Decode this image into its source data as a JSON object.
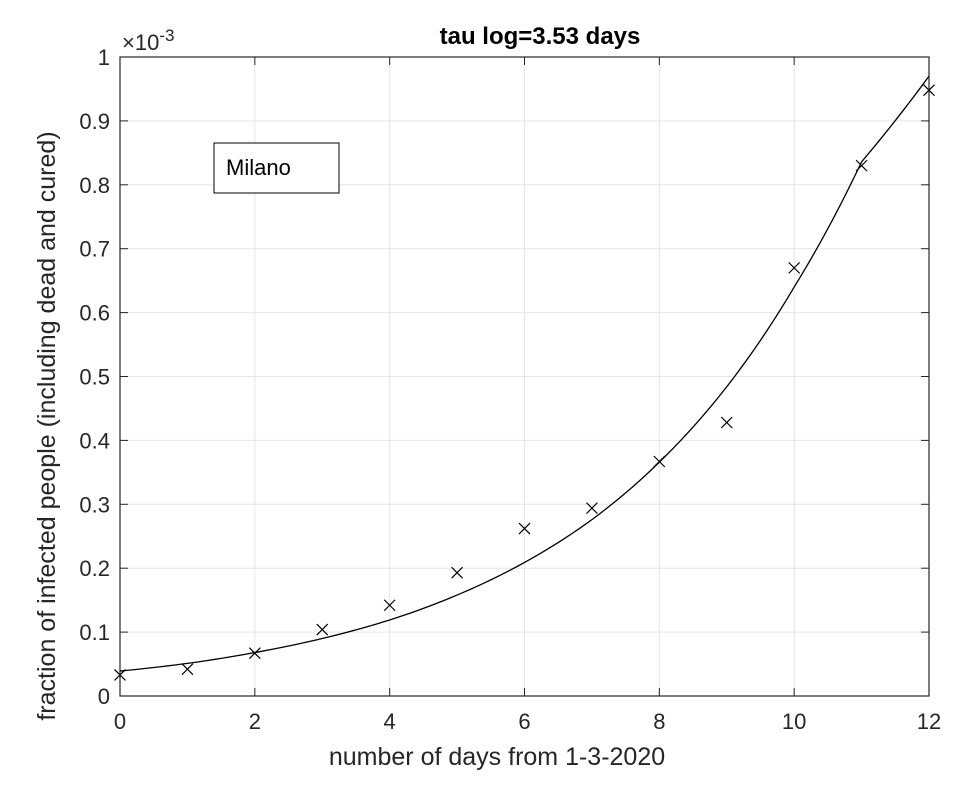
{
  "chart_data": {
    "type": "scatter",
    "title": "tau log=3.53 days",
    "xlabel": "number of days from 1-3-2020",
    "ylabel": "fraction of infected people (including dead and cured)",
    "xlim": [
      0,
      12
    ],
    "ylim": [
      0,
      1
    ],
    "y_scale_multiplier": "×10⁻³",
    "y_exponent_prefix": "×10",
    "y_exponent": "-3",
    "xticks": [
      "0",
      "2",
      "4",
      "6",
      "8",
      "10",
      "12"
    ],
    "yticks": [
      "0",
      "0.1",
      "0.2",
      "0.3",
      "0.4",
      "0.5",
      "0.6",
      "0.7",
      "0.8",
      "0.9",
      "1"
    ],
    "grid": true,
    "legend": {
      "entries": [
        "Milano"
      ],
      "placement": "top-left"
    },
    "series": [
      {
        "name": "Milano",
        "marker": "x",
        "x": [
          0,
          1,
          2,
          3,
          4,
          5,
          6,
          7,
          8,
          9,
          10,
          11,
          12
        ],
        "y": [
          0.033,
          0.042,
          0.067,
          0.104,
          0.142,
          0.193,
          0.262,
          0.294,
          0.367,
          0.428,
          0.67,
          0.83,
          0.948
        ]
      },
      {
        "line": "exponential fit",
        "x": [
          0,
          1,
          2,
          3,
          4,
          5,
          6,
          7,
          8,
          9,
          10,
          11,
          12
        ],
        "y": [
          0.039,
          0.051,
          0.068,
          0.09,
          0.119,
          0.158,
          0.209,
          0.276,
          0.366,
          0.484,
          0.64,
          0.836,
          0.97
        ]
      }
    ],
    "colors": {
      "data": "#000000",
      "fit": "#000000",
      "grid": "#e6e6e6",
      "axes": "#262626"
    }
  }
}
